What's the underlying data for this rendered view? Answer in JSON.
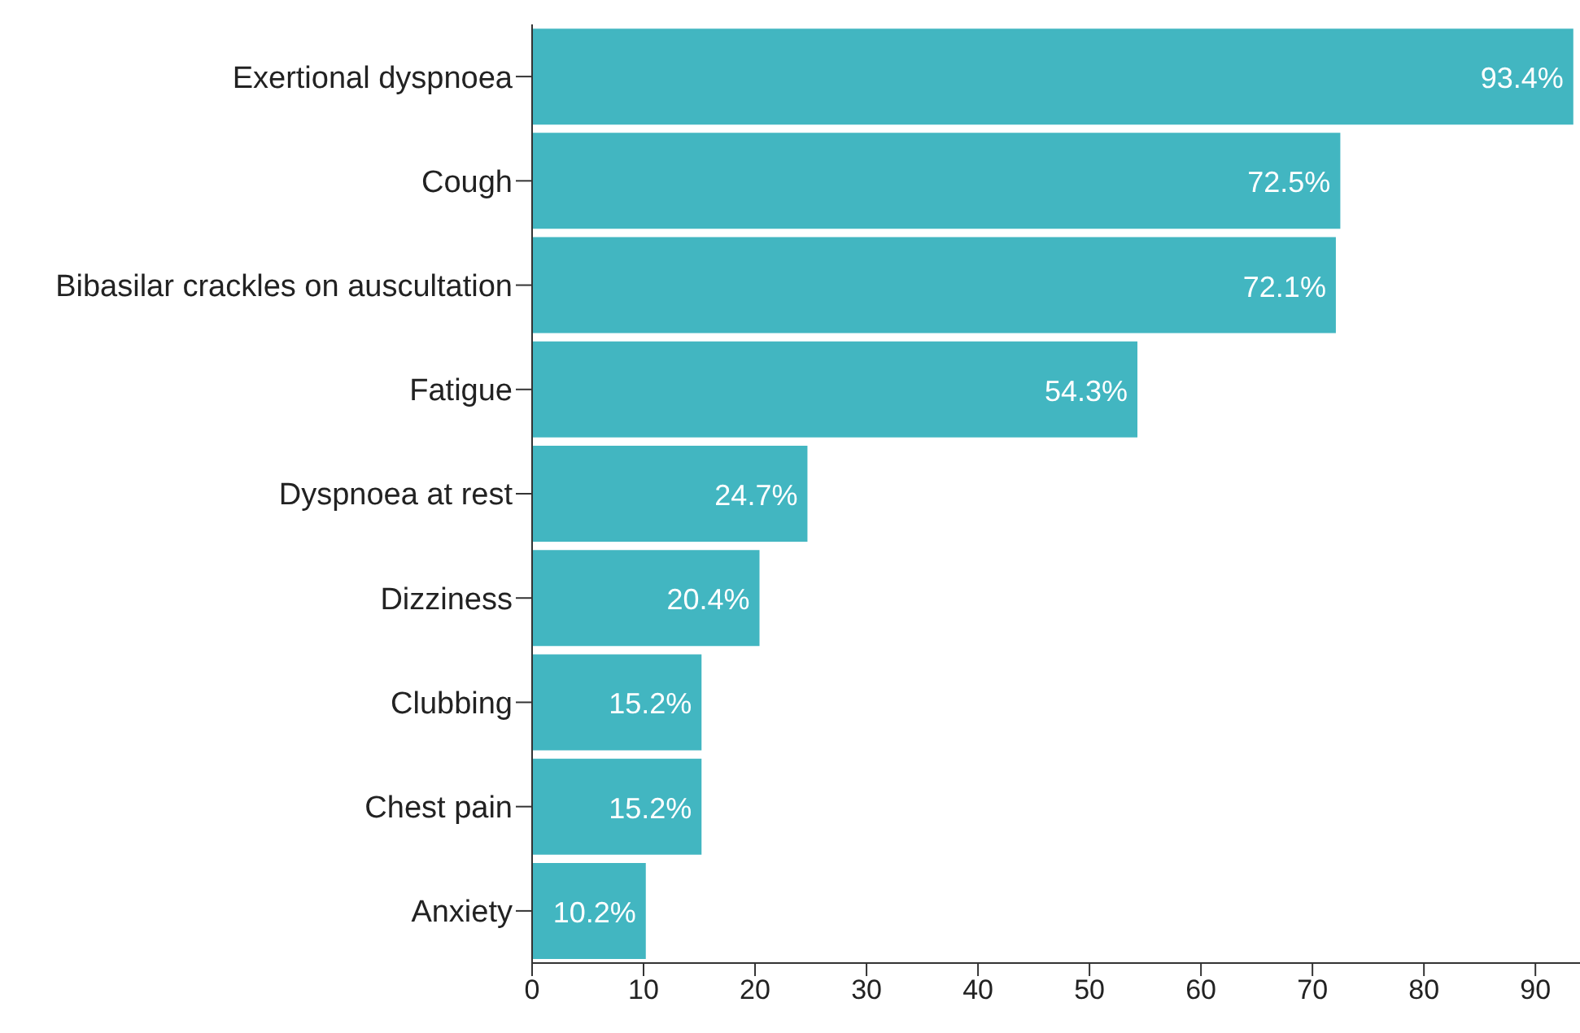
{
  "chart_data": {
    "type": "bar",
    "orientation": "horizontal",
    "categories": [
      "Exertional dyspnoea",
      "Cough",
      "Bibasilar crackles on auscultation",
      "Fatigue",
      "Dyspnoea at rest",
      "Dizziness",
      "Clubbing",
      "Chest pain",
      "Anxiety"
    ],
    "values": [
      93.4,
      72.5,
      72.1,
      54.3,
      24.7,
      20.4,
      15.2,
      15.2,
      10.2
    ],
    "value_labels": [
      "93.4%",
      "72.5%",
      "72.1%",
      "54.3%",
      "24.7%",
      "20.4%",
      "15.2%",
      "15.2%",
      "10.2%"
    ],
    "color": "#42b6c1",
    "xlim": [
      0,
      94
    ],
    "xticks": [
      0,
      10,
      20,
      30,
      40,
      50,
      60,
      70,
      80,
      90
    ],
    "grid": false,
    "legend": false
  }
}
